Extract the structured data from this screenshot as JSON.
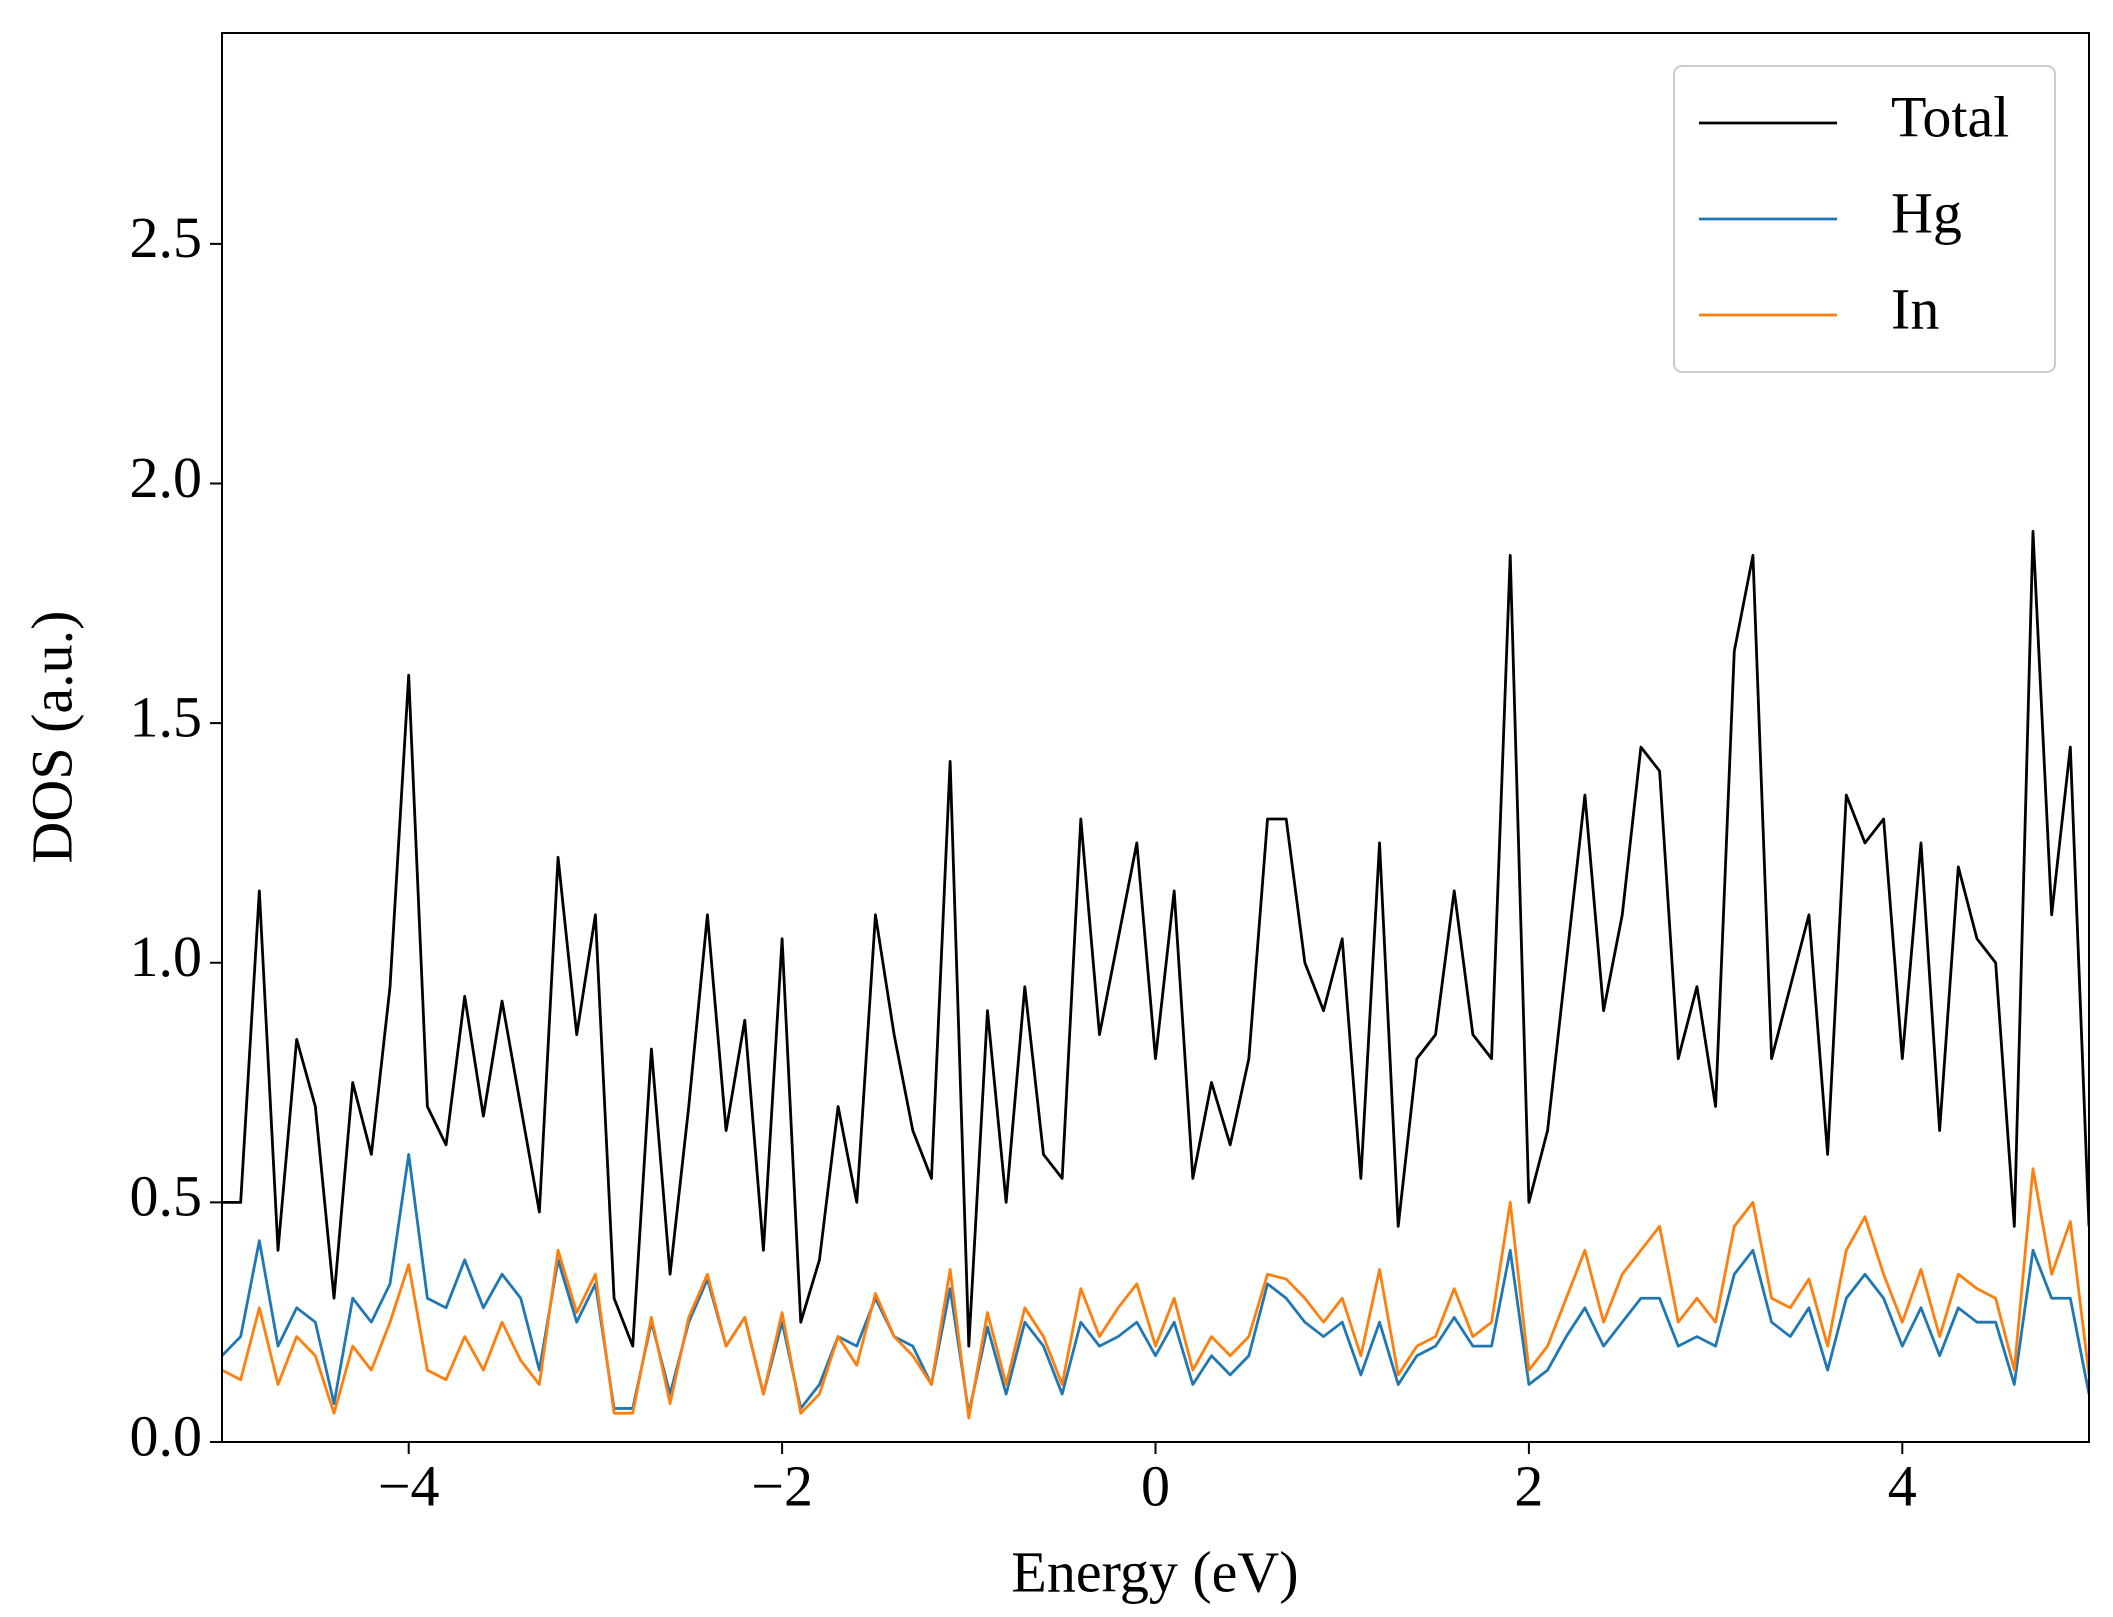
{
  "chart_data": {
    "type": "line",
    "xlabel": "Energy (eV)",
    "ylabel": "DOS (a.u.)",
    "xlim": [
      -5,
      5
    ],
    "ylim": [
      0,
      2.94
    ],
    "xticks": [
      {
        "value": -4,
        "label": "−4"
      },
      {
        "value": -2,
        "label": "−2"
      },
      0,
      2,
      4
    ],
    "yticks": [
      {
        "value": 0,
        "label": "0.0"
      },
      {
        "value": 0.5,
        "label": "0.5"
      },
      {
        "value": 1,
        "label": "1.0"
      },
      {
        "value": 1.5,
        "label": "1.5"
      },
      {
        "value": 2,
        "label": "2.0"
      },
      {
        "value": 2.5,
        "label": "2.5"
      }
    ],
    "legend": "upper right",
    "x": [
      -5.0,
      -4.9,
      -4.8,
      -4.7,
      -4.6,
      -4.5,
      -4.4,
      -4.3,
      -4.2,
      -4.1,
      -4.0,
      -3.9,
      -3.8,
      -3.7,
      -3.6,
      -3.5,
      -3.4,
      -3.3,
      -3.2,
      -3.1,
      -3.0,
      -2.9,
      -2.8,
      -2.7,
      -2.6,
      -2.5,
      -2.4,
      -2.3,
      -2.2,
      -2.1,
      -2.0,
      -1.9,
      -1.8,
      -1.7,
      -1.6,
      -1.5,
      -1.4,
      -1.3,
      -1.2,
      -1.1,
      -1.0,
      -0.9,
      -0.8,
      -0.7,
      -0.6,
      -0.5,
      -0.4,
      -0.3,
      -0.2,
      -0.1,
      0.0,
      0.1,
      0.2,
      0.3,
      0.4,
      0.5,
      0.6,
      0.7,
      0.8,
      0.9,
      1.0,
      1.1,
      1.2,
      1.3,
      1.4,
      1.5,
      1.6,
      1.7,
      1.8,
      1.9,
      2.0,
      2.1,
      2.2,
      2.3,
      2.4,
      2.5,
      2.6,
      2.7,
      2.8,
      2.9,
      3.0,
      3.1,
      3.2,
      3.3,
      3.4,
      3.5,
      3.6,
      3.7,
      3.8,
      3.9,
      4.0,
      4.1,
      4.2,
      4.3,
      4.4,
      4.5,
      4.6,
      4.7,
      4.8,
      4.9,
      5.0
    ],
    "series": [
      {
        "name": "Total",
        "color": "#000000",
        "values": [
          0.5,
          0.5,
          1.15,
          0.4,
          0.84,
          0.7,
          0.3,
          0.75,
          0.6,
          0.95,
          1.6,
          0.7,
          0.62,
          0.93,
          0.68,
          0.92,
          0.7,
          0.48,
          1.22,
          0.85,
          1.1,
          0.3,
          0.2,
          0.82,
          0.35,
          0.7,
          1.1,
          0.65,
          0.88,
          0.4,
          1.05,
          0.25,
          0.38,
          0.7,
          0.5,
          1.1,
          0.85,
          0.65,
          0.55,
          1.42,
          0.2,
          0.9,
          0.5,
          0.95,
          0.6,
          0.55,
          1.3,
          0.85,
          1.05,
          1.25,
          0.8,
          1.15,
          0.55,
          0.75,
          0.62,
          0.8,
          1.3,
          1.3,
          1.0,
          0.9,
          1.05,
          0.55,
          1.25,
          0.45,
          0.8,
          0.85,
          1.15,
          0.85,
          0.8,
          1.85,
          0.5,
          0.65,
          1.0,
          1.35,
          0.9,
          1.1,
          1.45,
          1.4,
          0.8,
          0.95,
          0.7,
          1.65,
          1.85,
          0.8,
          0.95,
          1.1,
          0.6,
          1.35,
          1.25,
          1.3,
          0.8,
          1.25,
          0.65,
          1.2,
          1.05,
          1.0,
          0.45,
          1.9,
          1.1,
          1.45,
          0.45
        ]
      },
      {
        "name": "Hg",
        "color": "#1f77b4",
        "values": [
          0.18,
          0.22,
          0.42,
          0.2,
          0.28,
          0.25,
          0.08,
          0.3,
          0.25,
          0.33,
          0.6,
          0.3,
          0.28,
          0.38,
          0.28,
          0.35,
          0.3,
          0.15,
          0.38,
          0.25,
          0.33,
          0.07,
          0.07,
          0.25,
          0.1,
          0.25,
          0.34,
          0.2,
          0.26,
          0.1,
          0.25,
          0.07,
          0.12,
          0.22,
          0.2,
          0.3,
          0.22,
          0.2,
          0.12,
          0.32,
          0.06,
          0.24,
          0.1,
          0.25,
          0.2,
          0.1,
          0.25,
          0.2,
          0.22,
          0.25,
          0.18,
          0.25,
          0.12,
          0.18,
          0.14,
          0.18,
          0.33,
          0.3,
          0.25,
          0.22,
          0.25,
          0.14,
          0.25,
          0.12,
          0.18,
          0.2,
          0.26,
          0.2,
          0.2,
          0.4,
          0.12,
          0.15,
          0.22,
          0.28,
          0.2,
          0.25,
          0.3,
          0.3,
          0.2,
          0.22,
          0.2,
          0.35,
          0.4,
          0.25,
          0.22,
          0.28,
          0.15,
          0.3,
          0.35,
          0.3,
          0.2,
          0.28,
          0.18,
          0.28,
          0.25,
          0.25,
          0.12,
          0.4,
          0.3,
          0.3,
          0.1
        ]
      },
      {
        "name": "In",
        "color": "#ff7f0e",
        "values": [
          0.15,
          0.13,
          0.28,
          0.12,
          0.22,
          0.18,
          0.06,
          0.2,
          0.15,
          0.25,
          0.37,
          0.15,
          0.13,
          0.22,
          0.15,
          0.25,
          0.17,
          0.12,
          0.4,
          0.27,
          0.35,
          0.06,
          0.06,
          0.26,
          0.08,
          0.26,
          0.35,
          0.2,
          0.26,
          0.1,
          0.27,
          0.06,
          0.1,
          0.22,
          0.16,
          0.31,
          0.22,
          0.18,
          0.12,
          0.36,
          0.05,
          0.27,
          0.12,
          0.28,
          0.22,
          0.12,
          0.32,
          0.22,
          0.28,
          0.33,
          0.2,
          0.3,
          0.15,
          0.22,
          0.18,
          0.22,
          0.35,
          0.34,
          0.3,
          0.25,
          0.3,
          0.18,
          0.36,
          0.14,
          0.2,
          0.22,
          0.32,
          0.22,
          0.25,
          0.5,
          0.15,
          0.2,
          0.3,
          0.4,
          0.25,
          0.35,
          0.4,
          0.45,
          0.25,
          0.3,
          0.25,
          0.45,
          0.5,
          0.3,
          0.28,
          0.34,
          0.2,
          0.4,
          0.47,
          0.35,
          0.25,
          0.36,
          0.22,
          0.35,
          0.32,
          0.3,
          0.15,
          0.57,
          0.35,
          0.46,
          0.14
        ]
      }
    ]
  }
}
